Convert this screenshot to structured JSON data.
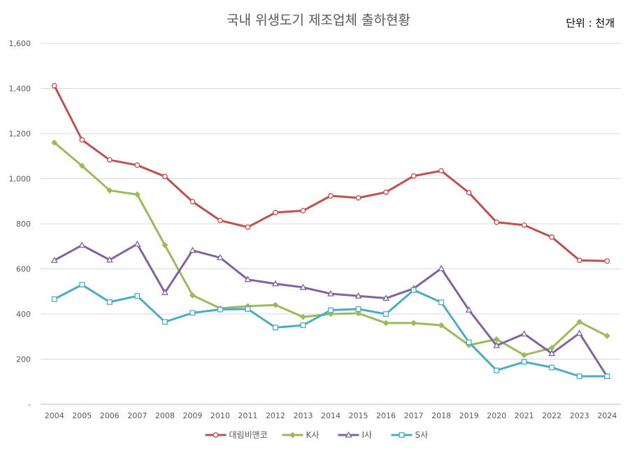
{
  "chart_data": {
    "type": "line",
    "title": "국내 위생도기 제조업체 출하현황",
    "unit_label": "단위 : 천개",
    "x": [
      "2004",
      "2005",
      "2006",
      "2007",
      "2008",
      "2009",
      "2010",
      "2011",
      "2012",
      "2013",
      "2014",
      "2015",
      "2016",
      "2017",
      "2018",
      "2019",
      "2020",
      "2021",
      "2022",
      "2023",
      "2024"
    ],
    "ylim": [
      0,
      1600
    ],
    "yticks": [
      0,
      200,
      400,
      600,
      800,
      1000,
      1200,
      1400,
      1600
    ],
    "ytick_labels": [
      "-",
      "200",
      "400",
      "600",
      "800",
      "1,000",
      "1,200",
      "1,400",
      "1,600"
    ],
    "grid": true,
    "legend_position": "bottom",
    "series": [
      {
        "name": "대림비앤코",
        "color": "#c0504d",
        "marker": "circle",
        "values": [
          1412,
          1172,
          1083,
          1060,
          1010,
          898,
          815,
          785,
          850,
          858,
          924,
          915,
          940,
          1012,
          1035,
          938,
          807,
          794,
          741,
          638,
          635
        ]
      },
      {
        "name": "K사",
        "color": "#9bbb59",
        "marker": "diamond",
        "values": [
          1160,
          1057,
          948,
          930,
          705,
          483,
          425,
          435,
          440,
          387,
          400,
          403,
          360,
          360,
          350,
          262,
          288,
          218,
          250,
          365,
          303
        ]
      },
      {
        "name": "I사",
        "color": "#8064a2",
        "marker": "triangle",
        "values": [
          638,
          705,
          640,
          710,
          495,
          682,
          650,
          553,
          534,
          518,
          490,
          480,
          470,
          513,
          602,
          418,
          260,
          312,
          225,
          315,
          123
        ]
      },
      {
        "name": "S사",
        "color": "#4bacc6",
        "marker": "square",
        "values": [
          466,
          530,
          453,
          480,
          365,
          405,
          420,
          422,
          340,
          350,
          417,
          422,
          400,
          506,
          452,
          275,
          150,
          188,
          163,
          124,
          124
        ]
      }
    ]
  }
}
